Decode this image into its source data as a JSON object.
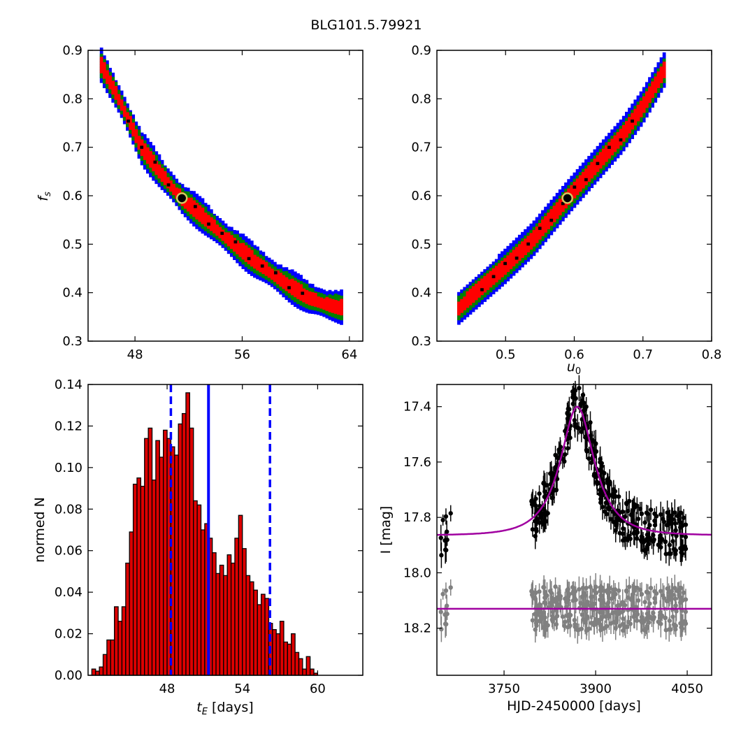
{
  "figure": {
    "title": "BLG101.5.79921"
  },
  "chart_data": [
    {
      "panel": "top-left",
      "type": "scatter",
      "xlabel": "",
      "ylabel": "f_s",
      "xlim": [
        44.5,
        65
      ],
      "ylim": [
        0.3,
        0.9
      ],
      "xticks": [
        "48",
        "56",
        "64"
      ],
      "yticks": [
        "0.3",
        "0.4",
        "0.5",
        "0.6",
        "0.7",
        "0.8",
        "0.9"
      ],
      "band_center": [
        [
          45.5,
          0.87
        ],
        [
          47,
          0.79
        ],
        [
          48.5,
          0.7
        ],
        [
          50,
          0.645
        ],
        [
          51.5,
          0.595
        ],
        [
          53,
          0.56
        ],
        [
          55,
          0.51
        ],
        [
          57,
          0.465
        ],
        [
          59,
          0.425
        ],
        [
          61,
          0.39
        ],
        [
          62.5,
          0.375
        ],
        [
          63.5,
          0.37
        ]
      ],
      "band_colors": {
        "outer": "#0000ff",
        "middle": "#008000",
        "inner": "#ff0000",
        "best": "#000000"
      },
      "best_fit": {
        "x": 51.5,
        "y": 0.595
      }
    },
    {
      "panel": "top-right",
      "type": "scatter",
      "xlabel": "u_0",
      "ylabel": "",
      "xlim": [
        0.4,
        0.8
      ],
      "ylim": [
        0.3,
        0.9
      ],
      "xticks": [
        "0.5",
        "0.6",
        "0.7",
        "0.8"
      ],
      "yticks": [
        "0.3",
        "0.4",
        "0.5",
        "0.6",
        "0.7",
        "0.8",
        "0.9"
      ],
      "band_center": [
        [
          0.432,
          0.37
        ],
        [
          0.46,
          0.405
        ],
        [
          0.5,
          0.455
        ],
        [
          0.54,
          0.51
        ],
        [
          0.59,
          0.595
        ],
        [
          0.63,
          0.66
        ],
        [
          0.67,
          0.725
        ],
        [
          0.7,
          0.785
        ],
        [
          0.735,
          0.87
        ]
      ],
      "band_colors": {
        "outer": "#0000ff",
        "middle": "#008000",
        "inner": "#ff0000",
        "best": "#000000"
      },
      "best_fit": {
        "x": 0.59,
        "y": 0.595
      }
    },
    {
      "panel": "bottom-left",
      "type": "bar",
      "xlabel": "t_E [days]",
      "ylabel": "normed N",
      "xlim": [
        41.7,
        63.6
      ],
      "ylim": [
        0,
        0.14
      ],
      "xticks": [
        "48",
        "54",
        "60"
      ],
      "yticks": [
        "0.00",
        "0.02",
        "0.04",
        "0.06",
        "0.08",
        "0.10",
        "0.12",
        "0.14"
      ],
      "bin_start": 42.0,
      "bin_width": 0.3,
      "values": [
        0.003,
        0.002,
        0.004,
        0.01,
        0.017,
        0.017,
        0.033,
        0.026,
        0.033,
        0.054,
        0.069,
        0.092,
        0.095,
        0.091,
        0.114,
        0.119,
        0.094,
        0.113,
        0.105,
        0.118,
        0.114,
        0.11,
        0.106,
        0.121,
        0.126,
        0.136,
        0.119,
        0.084,
        0.082,
        0.07,
        0.073,
        0.066,
        0.059,
        0.049,
        0.053,
        0.048,
        0.058,
        0.054,
        0.066,
        0.077,
        0.061,
        0.048,
        0.045,
        0.041,
        0.034,
        0.039,
        0.037,
        0.025,
        0.022,
        0.02,
        0.026,
        0.016,
        0.015,
        0.02,
        0.011,
        0.008,
        0.003,
        0.009,
        0.003,
        0.001
      ],
      "median": 51.3,
      "lower_bound": 48.3,
      "upper_bound": 56.2,
      "bar_color": "#dd0000",
      "line_color": "#0000ff"
    },
    {
      "panel": "bottom-right",
      "type": "scatter",
      "xlabel": "HJD-2450000 [days]",
      "ylabel": "I [mag]",
      "xlim": [
        3640,
        4090
      ],
      "ylim": [
        18.37,
        17.32
      ],
      "xticks": [
        "3750",
        "3900",
        "4050"
      ],
      "yticks": [
        "17.4",
        "17.6",
        "17.8",
        "18.0",
        "18.2"
      ],
      "model": {
        "t0": 3870,
        "peak_mag": 17.4,
        "base_mag": 17.865,
        "tE": 51.3,
        "u0": 0.59
      },
      "residual_offset": 18.13,
      "data_color": "#000000",
      "residual_color": "#808080",
      "model_color": "#a000a0"
    }
  ]
}
